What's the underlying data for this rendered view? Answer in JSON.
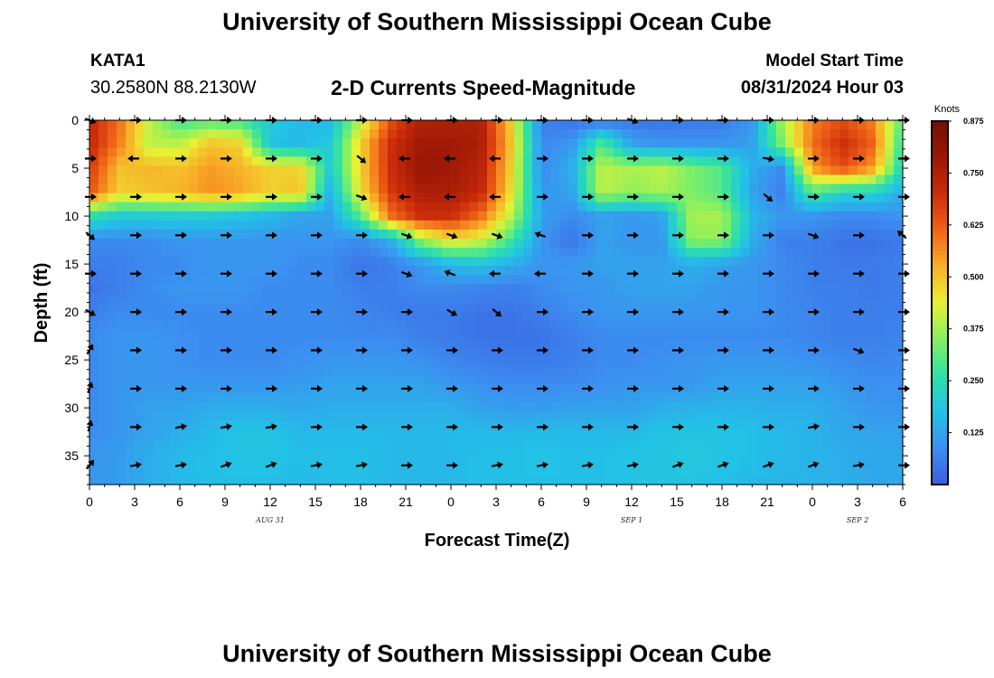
{
  "header": {
    "title": "University of Southern Mississippi Ocean Cube",
    "station": "KATA1",
    "coordinates": "30.2580N  88.2130W",
    "plot_title": "2-D Currents Speed-Magnitude",
    "model_start_label": "Model Start Time",
    "model_start_value": "08/31/2024 Hour 03"
  },
  "footer": {
    "title": "University of Southern Mississippi Ocean Cube"
  },
  "chart_data": {
    "type": "heatmap",
    "title": "2-D Currents Speed-Magnitude",
    "xlabel": "Forecast Time(Z)",
    "ylabel": "Depth (ft)",
    "x_range": [
      0,
      54
    ],
    "y_range": [
      0,
      38
    ],
    "y_inverted": true,
    "x_tick_labels": [
      "0",
      "3",
      "6",
      "9",
      "12",
      "15",
      "18",
      "21",
      "0",
      "3",
      "6",
      "9",
      "12",
      "15",
      "18",
      "21",
      "0",
      "3",
      "6"
    ],
    "y_ticks": [
      0,
      5,
      10,
      15,
      20,
      25,
      30,
      35
    ],
    "day_labels": [
      {
        "text": "AUG 31",
        "x": 12
      },
      {
        "text": "SEP 1",
        "x": 36
      },
      {
        "text": "SEP 2",
        "x": 51
      }
    ],
    "colorbar": {
      "label": "Knots",
      "range": [
        0,
        0.875
      ],
      "ticks": [
        0.125,
        0.25,
        0.375,
        0.5,
        0.625,
        0.75,
        0.875
      ],
      "tick_labels": [
        "0.125",
        "0.250",
        "0.375",
        "0.500",
        "0.625",
        "0.750",
        "0.875"
      ],
      "colors": [
        "#3b5ee0",
        "#3c8ff0",
        "#22c2e6",
        "#2ee0a8",
        "#86f060",
        "#e8f034",
        "#f8b028",
        "#f06418",
        "#cc2c0a",
        "#9c1806",
        "#741004"
      ]
    },
    "speed_grid": {
      "x": [
        0,
        2,
        4,
        6,
        8,
        10,
        12,
        14,
        16,
        18,
        20,
        22,
        24,
        26,
        28,
        30,
        32,
        34,
        36,
        38,
        40,
        42,
        44,
        46,
        48,
        50,
        52,
        54
      ],
      "depth": [
        0,
        2.5,
        5,
        7.5,
        10,
        12.5,
        15,
        17.5,
        20,
        22.5,
        25,
        27.5,
        30,
        32.5,
        35,
        38
      ],
      "values": [
        [
          0.72,
          0.6,
          0.4,
          0.28,
          0.3,
          0.28,
          0.2,
          0.16,
          0.16,
          0.4,
          0.64,
          0.75,
          0.75,
          0.75,
          0.48,
          0.06,
          0.04,
          0.04,
          0.04,
          0.04,
          0.05,
          0.05,
          0.1,
          0.38,
          0.58,
          0.65,
          0.58,
          0.3
        ],
        [
          0.72,
          0.58,
          0.4,
          0.4,
          0.5,
          0.48,
          0.18,
          0.16,
          0.2,
          0.48,
          0.7,
          0.78,
          0.78,
          0.76,
          0.5,
          0.08,
          0.1,
          0.3,
          0.12,
          0.1,
          0.1,
          0.1,
          0.12,
          0.34,
          0.6,
          0.7,
          0.62,
          0.25
        ],
        [
          0.68,
          0.5,
          0.52,
          0.5,
          0.55,
          0.52,
          0.48,
          0.48,
          0.2,
          0.48,
          0.7,
          0.8,
          0.78,
          0.74,
          0.48,
          0.08,
          0.14,
          0.4,
          0.38,
          0.4,
          0.34,
          0.3,
          0.14,
          0.08,
          0.55,
          0.65,
          0.55,
          0.22
        ],
        [
          0.64,
          0.48,
          0.5,
          0.52,
          0.56,
          0.54,
          0.48,
          0.5,
          0.14,
          0.46,
          0.68,
          0.76,
          0.76,
          0.72,
          0.46,
          0.1,
          0.12,
          0.4,
          0.36,
          0.38,
          0.34,
          0.3,
          0.12,
          0.06,
          0.3,
          0.22,
          0.22,
          0.14
        ],
        [
          0.26,
          0.2,
          0.2,
          0.2,
          0.2,
          0.18,
          0.16,
          0.12,
          0.12,
          0.3,
          0.6,
          0.7,
          0.7,
          0.6,
          0.4,
          0.12,
          0.08,
          0.12,
          0.1,
          0.12,
          0.38,
          0.38,
          0.16,
          0.1,
          0.1,
          0.08,
          0.08,
          0.1
        ],
        [
          0.08,
          0.08,
          0.08,
          0.1,
          0.1,
          0.1,
          0.1,
          0.1,
          0.1,
          0.08,
          0.14,
          0.36,
          0.46,
          0.42,
          0.28,
          0.1,
          0.04,
          0.12,
          0.1,
          0.1,
          0.36,
          0.36,
          0.14,
          0.06,
          0.06,
          0.04,
          0.04,
          0.05
        ],
        [
          0.06,
          0.06,
          0.08,
          0.08,
          0.1,
          0.1,
          0.1,
          0.08,
          0.08,
          0.04,
          0.06,
          0.1,
          0.16,
          0.18,
          0.14,
          0.1,
          0.1,
          0.12,
          0.12,
          0.12,
          0.14,
          0.12,
          0.1,
          0.08,
          0.06,
          0.05,
          0.05,
          0.06
        ],
        [
          0.04,
          0.06,
          0.08,
          0.1,
          0.1,
          0.1,
          0.08,
          0.08,
          0.08,
          0.06,
          0.06,
          0.08,
          0.08,
          0.07,
          0.06,
          0.08,
          0.1,
          0.1,
          0.12,
          0.12,
          0.12,
          0.1,
          0.1,
          0.08,
          0.06,
          0.06,
          0.05,
          0.06
        ],
        [
          0.06,
          0.08,
          0.08,
          0.08,
          0.08,
          0.08,
          0.08,
          0.08,
          0.08,
          0.07,
          0.06,
          0.05,
          0.05,
          0.04,
          0.04,
          0.06,
          0.08,
          0.1,
          0.1,
          0.1,
          0.1,
          0.1,
          0.1,
          0.08,
          0.07,
          0.06,
          0.06,
          0.06
        ],
        [
          0.08,
          0.1,
          0.1,
          0.09,
          0.08,
          0.08,
          0.08,
          0.08,
          0.08,
          0.08,
          0.08,
          0.06,
          0.05,
          0.04,
          0.04,
          0.04,
          0.06,
          0.08,
          0.08,
          0.08,
          0.08,
          0.08,
          0.08,
          0.08,
          0.07,
          0.06,
          0.06,
          0.07
        ],
        [
          0.08,
          0.1,
          0.1,
          0.09,
          0.08,
          0.08,
          0.08,
          0.09,
          0.1,
          0.1,
          0.1,
          0.09,
          0.07,
          0.06,
          0.05,
          0.05,
          0.06,
          0.08,
          0.08,
          0.09,
          0.1,
          0.1,
          0.1,
          0.1,
          0.09,
          0.08,
          0.07,
          0.08
        ],
        [
          0.08,
          0.1,
          0.1,
          0.1,
          0.1,
          0.1,
          0.1,
          0.11,
          0.12,
          0.12,
          0.12,
          0.12,
          0.1,
          0.09,
          0.08,
          0.08,
          0.08,
          0.09,
          0.1,
          0.1,
          0.1,
          0.12,
          0.12,
          0.12,
          0.12,
          0.1,
          0.09,
          0.09
        ],
        [
          0.08,
          0.1,
          0.12,
          0.12,
          0.14,
          0.14,
          0.14,
          0.13,
          0.14,
          0.14,
          0.14,
          0.14,
          0.14,
          0.12,
          0.11,
          0.11,
          0.12,
          0.12,
          0.12,
          0.14,
          0.15,
          0.15,
          0.15,
          0.14,
          0.14,
          0.12,
          0.1,
          0.1
        ],
        [
          0.08,
          0.1,
          0.12,
          0.14,
          0.16,
          0.18,
          0.18,
          0.16,
          0.16,
          0.16,
          0.16,
          0.16,
          0.16,
          0.16,
          0.16,
          0.16,
          0.16,
          0.16,
          0.16,
          0.18,
          0.18,
          0.18,
          0.17,
          0.16,
          0.15,
          0.13,
          0.12,
          0.12
        ],
        [
          0.1,
          0.11,
          0.14,
          0.16,
          0.17,
          0.18,
          0.18,
          0.17,
          0.17,
          0.17,
          0.16,
          0.16,
          0.16,
          0.17,
          0.17,
          0.18,
          0.17,
          0.17,
          0.18,
          0.18,
          0.19,
          0.18,
          0.17,
          0.16,
          0.15,
          0.14,
          0.13,
          0.13
        ],
        [
          0.1,
          0.11,
          0.14,
          0.16,
          0.17,
          0.17,
          0.17,
          0.16,
          0.17,
          0.17,
          0.16,
          0.16,
          0.16,
          0.17,
          0.17,
          0.17,
          0.17,
          0.17,
          0.18,
          0.18,
          0.18,
          0.17,
          0.16,
          0.15,
          0.15,
          0.14,
          0.13,
          0.13
        ]
      ]
    },
    "vectors": {
      "x": [
        0,
        3,
        6,
        9,
        12,
        15,
        18,
        21,
        24,
        27,
        30,
        33,
        36,
        39,
        42,
        45,
        48,
        51,
        54
      ],
      "depth": [
        0,
        4,
        8,
        12,
        16,
        20,
        24,
        28,
        32,
        36
      ],
      "angle_deg": [
        [
          20,
          0,
          0,
          0,
          0,
          0,
          0,
          0,
          0,
          0,
          0,
          0,
          20,
          0,
          0,
          0,
          0,
          0,
          0
        ],
        [
          0,
          180,
          0,
          0,
          0,
          0,
          40,
          180,
          180,
          180,
          0,
          0,
          0,
          0,
          0,
          10,
          0,
          0,
          0
        ],
        [
          0,
          0,
          0,
          0,
          0,
          0,
          20,
          180,
          180,
          180,
          0,
          0,
          0,
          0,
          0,
          40,
          0,
          0,
          0
        ],
        [
          40,
          0,
          0,
          0,
          0,
          0,
          0,
          20,
          20,
          20,
          200,
          0,
          0,
          0,
          0,
          0,
          20,
          0,
          220
        ],
        [
          0,
          0,
          0,
          0,
          0,
          0,
          0,
          20,
          200,
          180,
          180,
          0,
          0,
          0,
          0,
          0,
          0,
          0,
          0
        ],
        [
          30,
          0,
          0,
          0,
          0,
          0,
          0,
          0,
          30,
          40,
          0,
          0,
          0,
          0,
          0,
          0,
          0,
          0,
          0
        ],
        [
          -60,
          0,
          0,
          0,
          0,
          0,
          0,
          0,
          0,
          0,
          0,
          0,
          0,
          0,
          0,
          0,
          0,
          20,
          0
        ],
        [
          -70,
          0,
          0,
          0,
          0,
          0,
          0,
          0,
          0,
          0,
          0,
          0,
          0,
          0,
          0,
          0,
          0,
          0,
          0
        ],
        [
          -75,
          0,
          -10,
          -10,
          -10,
          0,
          0,
          0,
          0,
          0,
          0,
          0,
          0,
          0,
          0,
          0,
          -10,
          0,
          0
        ],
        [
          -50,
          -10,
          -10,
          -20,
          -20,
          -10,
          -10,
          0,
          0,
          -10,
          -10,
          -10,
          -10,
          -20,
          -20,
          -20,
          -20,
          -10,
          0
        ]
      ]
    }
  }
}
